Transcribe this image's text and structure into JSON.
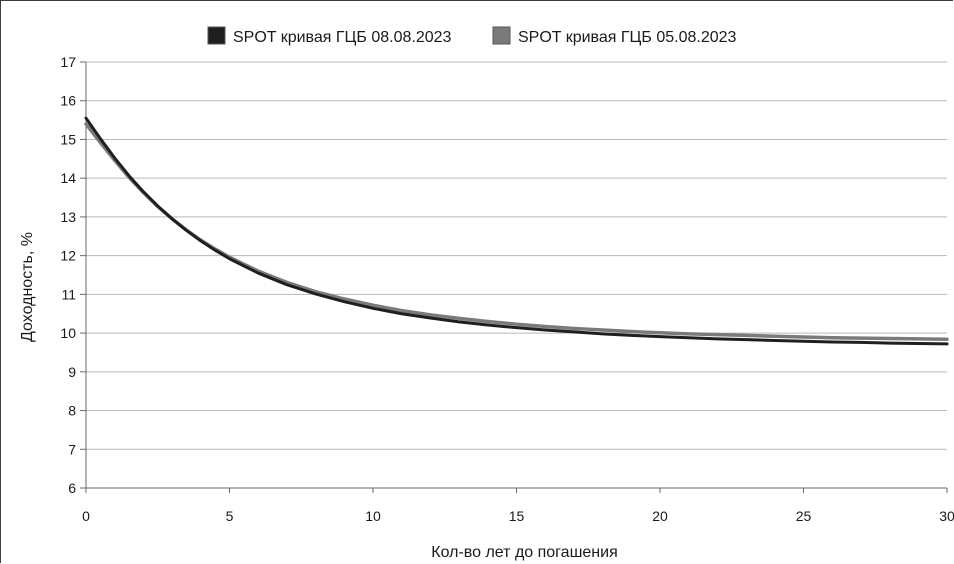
{
  "chart_data": {
    "type": "line",
    "title": "",
    "xlabel": "Кол-во лет до погашения",
    "ylabel": "Доходность, %",
    "xlim": [
      0,
      30
    ],
    "ylim": [
      6,
      17
    ],
    "xticks": [
      0,
      5,
      10,
      15,
      20,
      25,
      30
    ],
    "yticks": [
      6,
      7,
      8,
      9,
      10,
      11,
      12,
      13,
      14,
      15,
      16,
      17
    ],
    "grid": "horizontal",
    "legend_position": "top",
    "series": [
      {
        "name": "SPOT кривая ГЦБ 08.08.2023",
        "color": "#1f1f1f",
        "x": [
          0,
          0.5,
          1,
          1.5,
          2,
          2.5,
          3,
          3.5,
          4,
          4.5,
          5,
          6,
          7,
          8,
          9,
          10,
          11,
          12,
          13,
          14,
          15,
          16,
          17,
          18,
          19,
          20,
          21,
          22,
          23,
          24,
          25,
          26,
          27,
          28,
          29,
          30
        ],
        "y": [
          15.55,
          15.02,
          14.52,
          14.06,
          13.65,
          13.28,
          12.95,
          12.65,
          12.38,
          12.14,
          11.92,
          11.55,
          11.25,
          11.01,
          10.81,
          10.64,
          10.5,
          10.39,
          10.29,
          10.21,
          10.14,
          10.08,
          10.03,
          9.98,
          9.94,
          9.91,
          9.88,
          9.85,
          9.83,
          9.81,
          9.79,
          9.77,
          9.76,
          9.74,
          9.73,
          9.72
        ]
      },
      {
        "name": "SPOT кривая ГЦБ 05.08.2023",
        "color": "#7a7a7a",
        "x": [
          0,
          0.5,
          1,
          1.5,
          2,
          2.5,
          3,
          3.5,
          4,
          4.5,
          5,
          6,
          7,
          8,
          9,
          10,
          11,
          12,
          13,
          14,
          15,
          16,
          17,
          18,
          19,
          20,
          21,
          22,
          23,
          24,
          25,
          26,
          27,
          28,
          29,
          30
        ],
        "y": [
          15.4,
          14.92,
          14.46,
          14.02,
          13.63,
          13.27,
          12.95,
          12.66,
          12.4,
          12.17,
          11.96,
          11.6,
          11.31,
          11.07,
          10.88,
          10.72,
          10.58,
          10.47,
          10.38,
          10.3,
          10.23,
          10.17,
          10.12,
          10.08,
          10.04,
          10.01,
          9.98,
          9.96,
          9.94,
          9.92,
          9.9,
          9.88,
          9.87,
          9.86,
          9.85,
          9.84
        ]
      }
    ]
  }
}
